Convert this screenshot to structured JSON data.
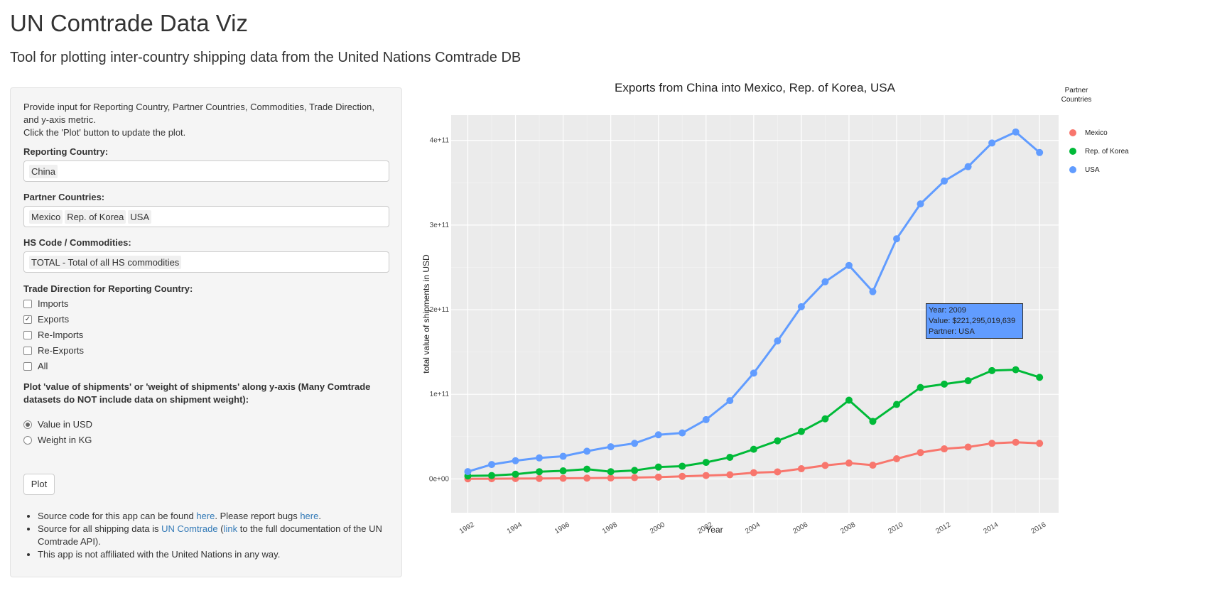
{
  "header": {
    "title": "UN Comtrade Data Viz",
    "subtitle": "Tool for plotting inter-country shipping data from the United Nations Comtrade DB"
  },
  "sidebar": {
    "intro_line1": "Provide input for Reporting Country, Partner Countries, Commodities, Trade Direction, and y-axis metric.",
    "intro_line2": "Click the 'Plot' button to update the plot.",
    "reporting_label": "Reporting Country:",
    "reporting_value": "China",
    "partner_label": "Partner Countries:",
    "partner_values": [
      "Mexico",
      "Rep. of Korea",
      "USA"
    ],
    "hs_label": "HS Code / Commodities:",
    "hs_value": "TOTAL - Total of all HS commodities",
    "direction_label": "Trade Direction for Reporting Country:",
    "directions": [
      {
        "label": "Imports",
        "checked": false
      },
      {
        "label": "Exports",
        "checked": true
      },
      {
        "label": "Re-Imports",
        "checked": false
      },
      {
        "label": "Re-Exports",
        "checked": false
      },
      {
        "label": "All",
        "checked": false
      }
    ],
    "metric_label": "Plot 'value of shipments' or 'weight of shipments' along y-axis (Many Comtrade datasets do NOT include data on shipment weight):",
    "metrics": [
      {
        "label": "Value in USD",
        "selected": true
      },
      {
        "label": "Weight in KG",
        "selected": false
      }
    ],
    "plot_button": "Plot",
    "notes": {
      "n1_a": "Source code for this app can be found ",
      "n1_link1": "here",
      "n1_b": ". Please report bugs ",
      "n1_link2": "here",
      "n1_c": ".",
      "n2_a": "Source for all shipping data is ",
      "n2_link1": "UN Comtrade",
      "n2_b": " (",
      "n2_link2": "link",
      "n2_c": " to the full documentation of the UN Comtrade API).",
      "n3": "This app is not affiliated with the United Nations in any way."
    }
  },
  "tooltip": {
    "year": "Year: 2009",
    "value": "Value: $221,295,019,639",
    "partner": "Partner: USA"
  },
  "chart_data": {
    "type": "line",
    "title": "Exports from China into Mexico, Rep. of Korea, USA",
    "xlabel": "Year",
    "ylabel": "total value of shipments in USD",
    "legend_title": "Partner Countries",
    "legend_position": "top-right",
    "grid": true,
    "xlim": [
      1991.3,
      2016.8
    ],
    "ylim": [
      -40000000000,
      430000000000
    ],
    "x_ticks": [
      1992,
      1994,
      1996,
      1998,
      2000,
      2002,
      2004,
      2006,
      2008,
      2010,
      2012,
      2014,
      2016
    ],
    "y_ticks": [
      0,
      100000000000,
      200000000000,
      300000000000,
      400000000000
    ],
    "y_tick_labels": [
      "0e+00",
      "1e+11",
      "2e+11",
      "3e+11",
      "4e+11"
    ],
    "x": [
      1992,
      1993,
      1994,
      1995,
      1996,
      1997,
      1998,
      1999,
      2000,
      2001,
      2002,
      2003,
      2004,
      2005,
      2006,
      2007,
      2008,
      2009,
      2010,
      2011,
      2012,
      2013,
      2014,
      2015,
      2016
    ],
    "series": [
      {
        "name": "Mexico",
        "color": "#f8766d",
        "values": [
          100000000.0,
          200000000.0,
          400000000.0,
          500000000.0,
          700000000.0,
          900000000.0,
          1100000000.0,
          1500000000.0,
          2100000000.0,
          3000000000.0,
          4000000000.0,
          4900000000.0,
          7300000000.0,
          8300000000.0,
          12000000000.0,
          15900000000.0,
          18700000000.0,
          16200000000.0,
          23800000000.0,
          31100000000.0,
          35500000000.0,
          37600000000.0,
          42000000000.0,
          43300000000.0,
          42000000000.0
        ]
      },
      {
        "name": "Rep. of Korea",
        "color": "#00ba38",
        "values": [
          3500000000.0,
          4000000000.0,
          5500000000.0,
          8500000000.0,
          9500000000.0,
          11500000000.0,
          8500000000.0,
          10000000000.0,
          14000000000.0,
          15000000000.0,
          19500000000.0,
          25500000000.0,
          35000000000.0,
          45000000000.0,
          56000000000.0,
          71000000000.0,
          93000000000.0,
          68000000000.0,
          88000000000.0,
          108000000000.0,
          112000000000.0,
          116000000000.0,
          128000000000.0,
          129000000000.0,
          120000000000.0
        ]
      },
      {
        "name": "USA",
        "color": "#619cff",
        "values": [
          8600000000.0,
          17000000000.0,
          21500000000.0,
          24800000000.0,
          26700000000.0,
          32700000000.0,
          38000000000.0,
          42000000000.0,
          52100000000.0,
          54300000000.0,
          70000000000.0,
          92500000000.0,
          125000000000.0,
          163000000000.0,
          203500000000.0,
          233000000000.0,
          252300000000.0,
          221300000000.0,
          283800000000.0,
          325000000000.0,
          352000000000.0,
          369000000000.0,
          397000000000.0,
          410000000000.0,
          385700000000.0
        ]
      }
    ]
  }
}
